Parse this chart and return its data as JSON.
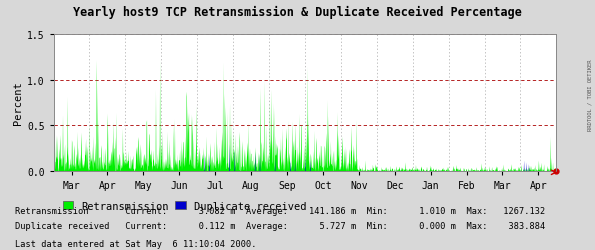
{
  "title": "Yearly host9 TCP Retransmission & Duplicate Received Percentage",
  "ylabel": "Percent",
  "bg_color": "#d8d8d8",
  "plot_bg_color": "#ffffff",
  "grid_color_h": "#aa0000",
  "grid_color_v": "#aaaaaa",
  "ylim": [
    0,
    1.5
  ],
  "yticks": [
    0.0,
    0.5,
    1.0,
    1.5
  ],
  "x_months": [
    "Mar",
    "Apr",
    "May",
    "Jun",
    "Jul",
    "Aug",
    "Sep",
    "Oct",
    "Nov",
    "Dec",
    "Jan",
    "Feb",
    "Mar",
    "Apr"
  ],
  "green_color": "#00ee00",
  "blue_color": "#0000cc",
  "legend_green": "Retransmission",
  "legend_blue": "Duplicate received",
  "stats_line1": "Retransmission       Current:      3.082 m  Average:    141.186 m  Min:      1.010 m  Max:   1267.132",
  "stats_line2": "Duplicate received   Current:      0.112 m  Average:      5.727 m  Min:      0.000 m  Max:    383.884",
  "last_data": "Last data entered at Sat May  6 11:10:04 2000.",
  "right_label": "RRDTOOL / TOBI OETIKER",
  "arrow_color": "#cc0000",
  "n_points": 1460
}
